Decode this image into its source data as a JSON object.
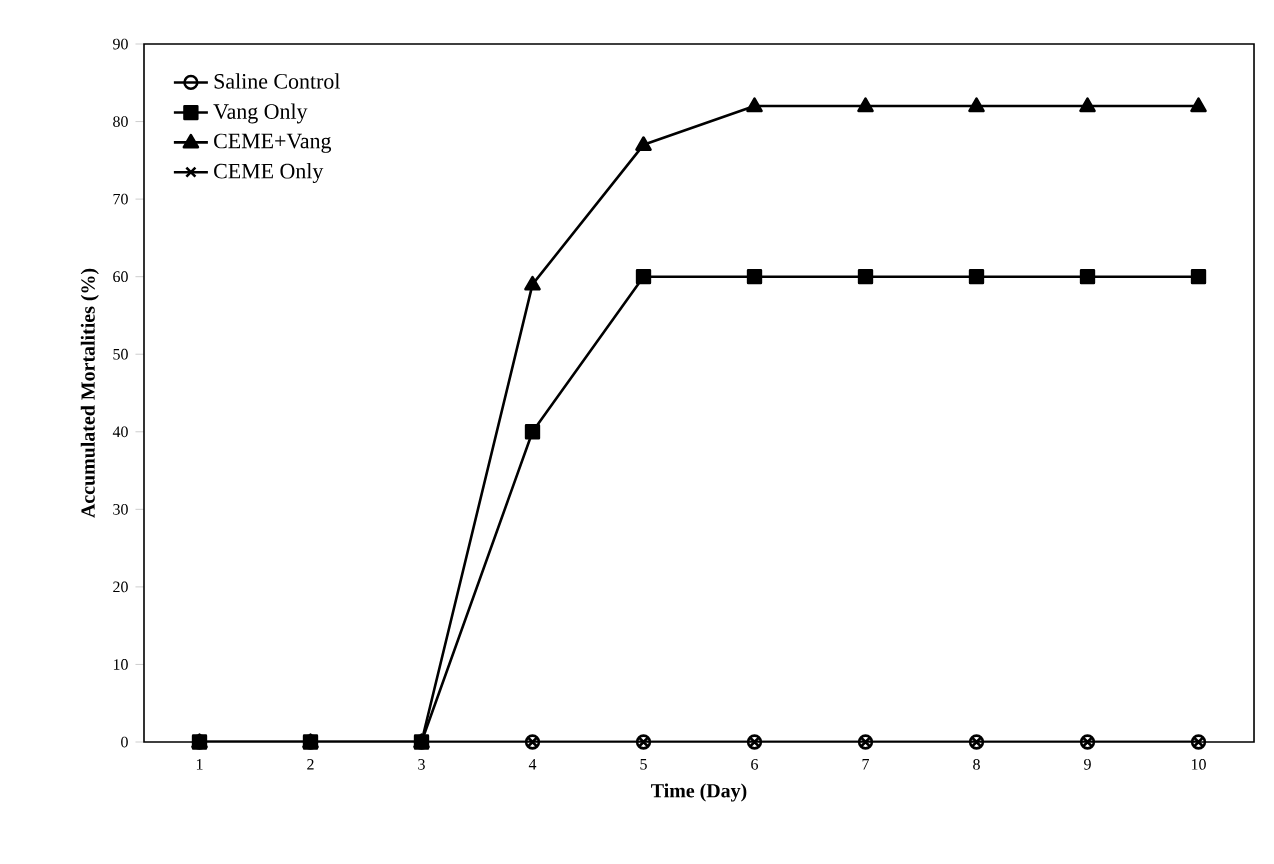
{
  "chart_data": {
    "type": "line",
    "xlabel": "Time (Day)",
    "ylabel": "Accumulated Mortalities (%)",
    "x": [
      1,
      2,
      3,
      4,
      5,
      6,
      7,
      8,
      9,
      10
    ],
    "xlim": [
      0.5,
      10.5
    ],
    "xticks": [
      1,
      2,
      3,
      4,
      5,
      6,
      7,
      8,
      9,
      10
    ],
    "ylim": [
      0,
      90
    ],
    "yticks": [
      0,
      10,
      20,
      30,
      40,
      50,
      60,
      70,
      80,
      90
    ],
    "legend": "top left",
    "grid": false,
    "line_style": "solid",
    "series": [
      {
        "name": "Saline Control",
        "color": "#000000",
        "marker": "circle",
        "values": [
          0,
          0,
          0,
          0,
          0,
          0,
          0,
          0,
          0,
          0
        ]
      },
      {
        "name": "Vang Only",
        "color": "#000000",
        "marker": "square",
        "values": [
          0,
          0,
          0,
          40,
          60,
          60,
          60,
          60,
          60,
          60
        ]
      },
      {
        "name": "CEME+Vang",
        "color": "#000000",
        "marker": "triangle",
        "values": [
          0,
          0,
          0,
          59,
          77,
          82,
          82,
          82,
          82,
          82
        ]
      },
      {
        "name": "CEME Only",
        "color": "#000000",
        "marker": "cross",
        "values": [
          0,
          0,
          0,
          0,
          0,
          0,
          0,
          0,
          0,
          0
        ]
      }
    ]
  }
}
